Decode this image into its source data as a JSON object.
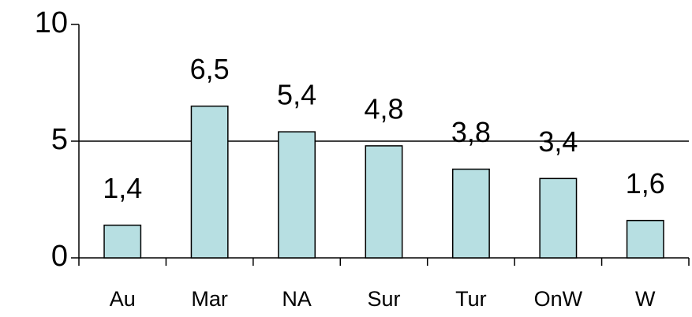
{
  "chart_data": {
    "type": "bar",
    "categories": [
      "Au",
      "Mar",
      "NA",
      "Sur",
      "Tur",
      "OnW",
      "W"
    ],
    "values": [
      1.4,
      6.5,
      5.4,
      4.8,
      3.8,
      3.4,
      1.6
    ],
    "value_labels": [
      "1,4",
      "6,5",
      "5,4",
      "4,8",
      "3,8",
      "3,4",
      "1,6"
    ],
    "color": "#b7dfe2",
    "ylim": [
      0,
      10
    ],
    "yticks": [
      0,
      5,
      10
    ],
    "grid": true
  }
}
